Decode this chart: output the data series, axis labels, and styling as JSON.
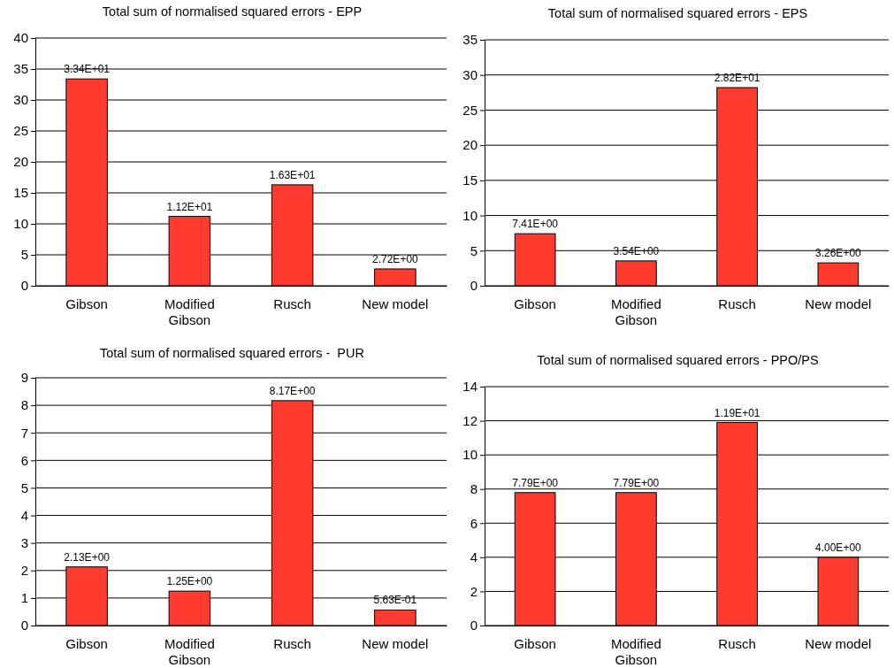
{
  "chart_data": [
    {
      "type": "bar",
      "title": "Total sum of normalised squared errors - EPP",
      "categories": [
        "Gibson",
        "Modified\nGibson",
        "Rusch",
        "New model"
      ],
      "values": [
        33.4,
        11.2,
        16.3,
        2.72
      ],
      "value_labels": [
        "3.34E+01",
        "1.12E+01",
        "1.63E+01",
        "2.72E+00"
      ],
      "color": "#ff3b30",
      "ylim": [
        0,
        40
      ],
      "yticks": [
        0,
        5,
        10,
        15,
        20,
        25,
        30,
        35,
        40
      ],
      "grid": "y"
    },
    {
      "type": "bar",
      "title": "Total sum of normalised squared errors - EPS",
      "categories": [
        "Gibson",
        "Modified\nGibson",
        "Rusch",
        "New model"
      ],
      "values": [
        7.41,
        3.54,
        28.2,
        3.26
      ],
      "value_labels": [
        "7.41E+00",
        "3.54E+00",
        "2.82E+01",
        "3.26E+00"
      ],
      "color": "#ff3b30",
      "ylim": [
        0,
        35
      ],
      "yticks": [
        0,
        5,
        10,
        15,
        20,
        25,
        30,
        35
      ],
      "grid": "y"
    },
    {
      "type": "bar",
      "title": "Total sum of normalised squared errors -  PUR",
      "categories": [
        "Gibson",
        "Modified\nGibson",
        "Rusch",
        "New model"
      ],
      "values": [
        2.13,
        1.25,
        8.17,
        0.563
      ],
      "value_labels": [
        "2.13E+00",
        "1.25E+00",
        "8.17E+00",
        "5.63E-01"
      ],
      "color": "#ff3b30",
      "ylim": [
        0,
        9
      ],
      "yticks": [
        0,
        1,
        2,
        3,
        4,
        5,
        6,
        7,
        8,
        9
      ],
      "grid": "y"
    },
    {
      "type": "bar",
      "title": "Total sum of normalised squared errors - PPO/PS",
      "categories": [
        "Gibson",
        "Modified\nGibson",
        "Rusch",
        "New model"
      ],
      "values": [
        7.79,
        7.79,
        11.9,
        4.0
      ],
      "value_labels": [
        "7.79E+00",
        "7.79E+00",
        "1.19E+01",
        "4.00E+00"
      ],
      "color": "#ff3b30",
      "ylim": [
        0,
        14
      ],
      "yticks": [
        0,
        2,
        4,
        6,
        8,
        10,
        12,
        14
      ],
      "grid": "y"
    }
  ]
}
